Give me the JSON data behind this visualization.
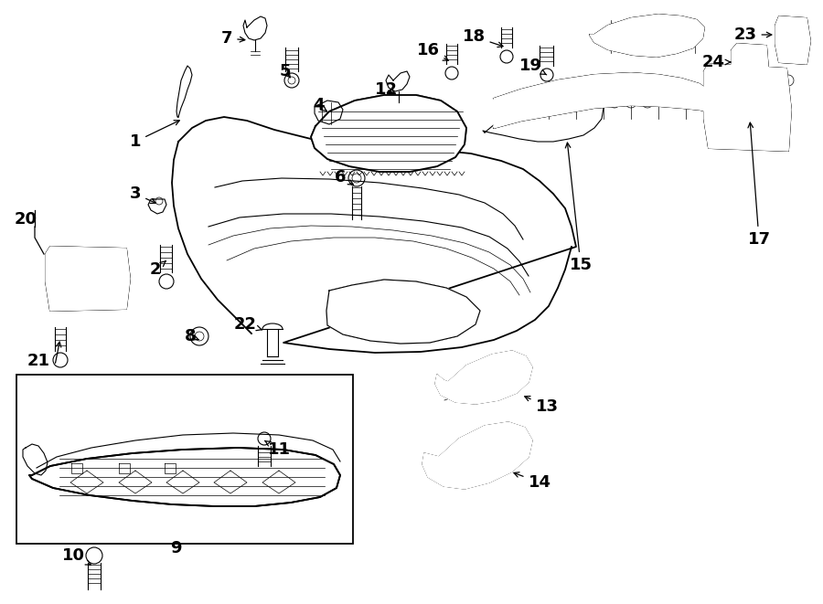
{
  "bg_color": "#ffffff",
  "line_color": "#000000",
  "figsize": [
    9.0,
    6.61
  ],
  "dpi": 100,
  "xlim": [
    0,
    900
  ],
  "ylim": [
    0,
    661
  ]
}
